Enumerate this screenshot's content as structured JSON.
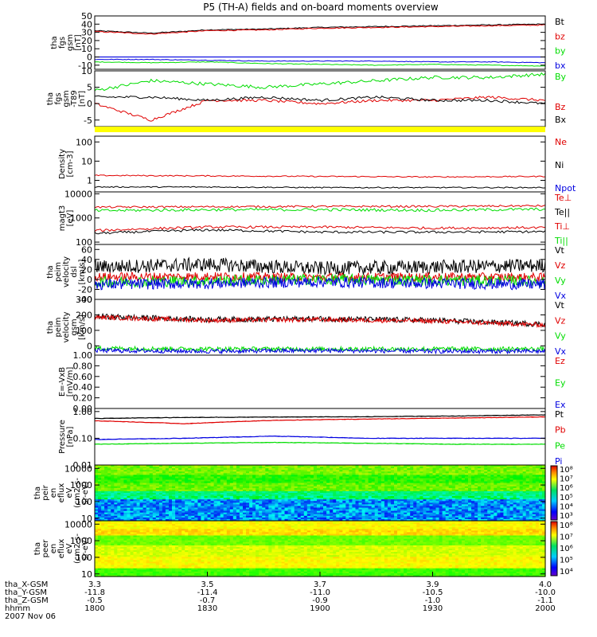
{
  "title": "P5 (TH-A) fields and on-board moments overview",
  "colors": {
    "black": "#000000",
    "red": "#e00000",
    "green": "#00dd00",
    "blue": "#0000e0",
    "yellow": "#ffff00"
  },
  "panels": [
    {
      "ylabel": [
        "tha",
        "fgs",
        "gsm",
        "[nT]"
      ],
      "ylim": [
        -15,
        50
      ],
      "ticks": [
        {
          "v": 50,
          "t": "50"
        },
        {
          "v": 40,
          "t": "40"
        },
        {
          "v": 30,
          "t": "30"
        },
        {
          "v": 20,
          "t": "20"
        },
        {
          "v": 10,
          "t": "10"
        },
        {
          "v": 0,
          "t": "0"
        },
        {
          "v": -10,
          "t": "-10"
        }
      ],
      "legend": [
        {
          "label": "Bt",
          "color": "black"
        },
        {
          "label": "bz",
          "color": "red"
        },
        {
          "label": "by",
          "color": "green"
        },
        {
          "label": "bx",
          "color": "blue"
        }
      ],
      "zero_line": true
    },
    {
      "ylabel": [
        "tha",
        "fgs",
        "gsm",
        "-T89",
        "[nT]"
      ],
      "ylim": [
        -7,
        10
      ],
      "ticks": [
        {
          "v": 10,
          "t": "10"
        },
        {
          "v": 5,
          "t": "5"
        },
        {
          "v": 0,
          "t": "0"
        },
        {
          "v": -5,
          "t": "-5"
        }
      ],
      "legend": [
        {
          "label": "By",
          "color": "green"
        },
        {
          "label": "Bz",
          "color": "red"
        },
        {
          "label": "Bx",
          "color": "black"
        }
      ],
      "zero_line": false
    },
    {
      "ylabel": [
        "Density",
        "[cm-3]"
      ],
      "scale": "log",
      "ylim": [
        0.25,
        200
      ],
      "ticks": [
        {
          "v": 100,
          "t": "100"
        },
        {
          "v": 10,
          "t": "10"
        },
        {
          "v": 1,
          "t": "1"
        }
      ],
      "legend": [
        {
          "label": "Ne",
          "color": "red"
        },
        {
          "label": "Ni",
          "color": "black"
        },
        {
          "label": "Npot",
          "color": "blue"
        }
      ]
    },
    {
      "ylabel": [
        "magt3",
        "[eV]"
      ],
      "scale": "log",
      "ylim": [
        80,
        12000
      ],
      "ticks": [
        {
          "v": 10000,
          "t": "10000"
        },
        {
          "v": 1000,
          "t": "1000"
        },
        {
          "v": 100,
          "t": "100"
        }
      ],
      "legend": [
        {
          "label": "Te⊥",
          "color": "red"
        },
        {
          "label": "Te||",
          "color": "black"
        },
        {
          "label": "Ti⊥",
          "color": "red"
        },
        {
          "label": "Ti||",
          "color": "green"
        }
      ]
    },
    {
      "ylabel": [
        "tha",
        "peim",
        "velocity",
        "dsl",
        "[km/s]"
      ],
      "ylim": [
        -40,
        70
      ],
      "ticks": [
        {
          "v": 60,
          "t": "60"
        },
        {
          "v": 40,
          "t": "40"
        },
        {
          "v": 20,
          "t": "20"
        },
        {
          "v": 0,
          "t": "0"
        },
        {
          "v": -20,
          "t": "-20"
        },
        {
          "v": -40,
          "t": "-40"
        }
      ],
      "legend": [
        {
          "label": "Vt",
          "color": "black"
        },
        {
          "label": "Vz",
          "color": "red"
        },
        {
          "label": "Vy",
          "color": "green"
        },
        {
          "label": "Vx",
          "color": "blue"
        }
      ]
    },
    {
      "ylabel": [
        "tha",
        "peim",
        "velocity",
        "gsm",
        "[km/s]"
      ],
      "ylim": [
        -60,
        300
      ],
      "ticks": [
        {
          "v": 300,
          "t": "300"
        },
        {
          "v": 200,
          "t": "200"
        },
        {
          "v": 100,
          "t": "100"
        },
        {
          "v": 0,
          "t": "0"
        }
      ],
      "legend": [
        {
          "label": "Vt",
          "color": "black"
        },
        {
          "label": "Vz",
          "color": "red"
        },
        {
          "label": "Vy",
          "color": "green"
        },
        {
          "label": "Vx",
          "color": "blue"
        }
      ]
    },
    {
      "ylabel": [
        "E=-VxB",
        "[mV/m]"
      ],
      "ylim": [
        0,
        1
      ],
      "ticks": [
        {
          "v": 1.0,
          "t": "1.00"
        },
        {
          "v": 0.8,
          "t": "0.80"
        },
        {
          "v": 0.6,
          "t": "0.60"
        },
        {
          "v": 0.4,
          "t": "0.40"
        },
        {
          "v": 0.2,
          "t": "0.20"
        },
        {
          "v": 0.0,
          "t": "0.00"
        }
      ],
      "legend": [
        {
          "label": "Ez",
          "color": "red"
        },
        {
          "label": "Ey",
          "color": "green"
        },
        {
          "label": "Ex",
          "color": "blue"
        }
      ]
    },
    {
      "ylabel": [
        "Pressure",
        "[nPa]"
      ],
      "scale": "log",
      "ylim": [
        0.01,
        1.3
      ],
      "ticks": [
        {
          "v": 1.0,
          "t": "1.00"
        },
        {
          "v": 0.1,
          "t": "0.10"
        },
        {
          "v": 0.01,
          "t": "0.01"
        }
      ],
      "legend": [
        {
          "label": "Pt",
          "color": "black"
        },
        {
          "label": "Pb",
          "color": "red"
        },
        {
          "label": "Pe",
          "color": "green"
        },
        {
          "label": "Pi",
          "color": "blue"
        }
      ]
    },
    {
      "ylabel": [
        "tha",
        "peir",
        "en",
        "eflux",
        "eV",
        "(cm2-s-",
        "sr-eV)"
      ],
      "scale": "log",
      "ylim": [
        7,
        16000
      ],
      "ticks": [
        {
          "v": 10000,
          "t": "10000"
        },
        {
          "v": 1000,
          "t": "1000"
        },
        {
          "v": 100,
          "t": "100"
        },
        {
          "v": 10,
          "t": "10"
        }
      ],
      "colorbar": [
        "10⁸",
        "10⁷",
        "10⁶",
        "10⁵",
        "10⁴",
        "10³"
      ]
    },
    {
      "ylabel": [
        "tha",
        "peer",
        "en",
        "eflux",
        "eV",
        "(cm2-s-",
        "sr-eV)"
      ],
      "scale": "log",
      "ylim": [
        7,
        16000
      ],
      "ticks": [
        {
          "v": 10000,
          "t": "10000"
        },
        {
          "v": 1000,
          "t": "1000"
        },
        {
          "v": 100,
          "t": "100"
        },
        {
          "v": 10,
          "t": "10"
        }
      ],
      "colorbar": [
        "10⁸",
        "10⁷",
        "10⁶",
        "10⁵",
        "10⁴"
      ]
    }
  ],
  "chart_data": {
    "type": "line",
    "title": "P5 (TH-A) fields and on-board moments overview",
    "x_range_hhmm": [
      "1800",
      "2000"
    ],
    "x_ticks": [
      "1800",
      "1830",
      "1900",
      "1930",
      "2000"
    ],
    "panels": [
      {
        "id": "fgs_gsm",
        "x_hhmm": [
          1800,
          1815,
          1830,
          1845,
          1900,
          1915,
          1930,
          1945,
          2000
        ],
        "series": [
          {
            "name": "Bt",
            "values": [
              32,
              29,
              33,
              34,
              36,
              37,
              38,
              39,
              40
            ]
          },
          {
            "name": "bz",
            "values": [
              31,
              28,
              32,
              33,
              35,
              36,
              37,
              38,
              39
            ]
          },
          {
            "name": "by",
            "values": [
              -6,
              -7,
              -6,
              -8,
              -9,
              -10,
              -9,
              -10,
              -11
            ]
          },
          {
            "name": "bx",
            "values": [
              -3,
              -3,
              -4,
              -5,
              -5,
              -5,
              -6,
              -6,
              -7
            ]
          }
        ]
      },
      {
        "id": "fgs_gsm_minus_t89",
        "x_hhmm": [
          1800,
          1815,
          1830,
          1845,
          1900,
          1915,
          1930,
          1945,
          2000
        ],
        "series": [
          {
            "name": "By",
            "values": [
              4,
              7,
              6,
              5,
              6,
              7,
              8,
              8,
              9
            ]
          },
          {
            "name": "Bz",
            "values": [
              0,
              -5,
              1,
              1,
              0,
              1,
              1,
              2,
              1
            ]
          },
          {
            "name": "Bx",
            "values": [
              2,
              2,
              1,
              2,
              1,
              2,
              1,
              1,
              0
            ]
          }
        ]
      },
      {
        "id": "density",
        "x_hhmm": [
          1800,
          1830,
          1900,
          1930,
          2000
        ],
        "series": [
          {
            "name": "Ne",
            "values": [
              1.8,
              1.7,
              1.6,
              1.5,
              1.6
            ]
          },
          {
            "name": "Ni",
            "values": [
              0.45,
              0.45,
              0.42,
              0.42,
              0.42
            ]
          },
          {
            "name": "Npot",
            "values": []
          }
        ]
      },
      {
        "id": "magt3",
        "x_hhmm": [
          1800,
          1830,
          1900,
          1930,
          2000
        ],
        "series": [
          {
            "name": "Te⊥",
            "values": [
              2800,
              2900,
              3000,
              3000,
              3200
            ]
          },
          {
            "name": "Te||",
            "values": [
              230,
              320,
              260,
              260,
              270
            ]
          },
          {
            "name": "Ti⊥",
            "values": [
              300,
              420,
              420,
              380,
              400
            ]
          },
          {
            "name": "Ti||",
            "values": [
              2000,
              2200,
              2200,
              2100,
              2300
            ]
          }
        ]
      },
      {
        "id": "velocity_dsl",
        "x_hhmm": [
          1800,
          1830,
          1900,
          1930,
          2000
        ],
        "series": [
          {
            "name": "Vt",
            "values": [
              25,
              30,
              22,
              25,
              28
            ]
          },
          {
            "name": "Vz",
            "values": [
              5,
              6,
              4,
              5,
              4
            ]
          },
          {
            "name": "Vy",
            "values": [
              -5,
              -3,
              0,
              -2,
              -4
            ]
          },
          {
            "name": "Vx",
            "values": [
              -10,
              -8,
              -5,
              -8,
              -10
            ]
          }
        ]
      },
      {
        "id": "velocity_gsm",
        "x_hhmm": [
          1800,
          1830,
          1900,
          1930,
          2000
        ],
        "series": [
          {
            "name": "Vt",
            "values": [
              190,
              170,
              175,
              165,
              140
            ]
          },
          {
            "name": "Vz",
            "values": [
              185,
              165,
              170,
              160,
              135
            ]
          },
          {
            "name": "Vy",
            "values": [
              -15,
              -20,
              -20,
              -20,
              -20
            ]
          },
          {
            "name": "Vx",
            "values": [
              -30,
              -35,
              -30,
              -35,
              -35
            ]
          }
        ]
      },
      {
        "id": "e_vxb",
        "series": [
          {
            "name": "Ez",
            "values": []
          },
          {
            "name": "Ey",
            "values": []
          },
          {
            "name": "Ex",
            "values": []
          }
        ]
      },
      {
        "id": "pressure",
        "x_hhmm": [
          1800,
          1815,
          1830,
          1900,
          1930,
          2000
        ],
        "series": [
          {
            "name": "Pt",
            "values": [
              0.55,
              0.6,
              0.62,
              0.64,
              0.68,
              0.75
            ]
          },
          {
            "name": "Pb",
            "values": [
              0.45,
              0.35,
              0.47,
              0.52,
              0.57,
              0.63
            ]
          },
          {
            "name": "Pe",
            "values": [
              0.06,
              0.065,
              0.07,
              0.065,
              0.06,
              0.06
            ]
          },
          {
            "name": "Pi",
            "values": [
              0.09,
              0.1,
              0.12,
              0.1,
              0.1,
              0.1
            ]
          }
        ]
      }
    ]
  },
  "orbit": {
    "labels": [
      "tha_X-GSM",
      "tha_Y-GSM",
      "tha_Z-GSM",
      "hhmm",
      "2007 Nov 06"
    ],
    "columns": [
      [
        "3.3",
        "-11.8",
        "-0.5",
        "1800"
      ],
      [
        "3.5",
        "-11.4",
        "-0.7",
        "1830"
      ],
      [
        "3.7",
        "-11.0",
        "-0.9",
        "1900"
      ],
      [
        "3.9",
        "-10.5",
        "-1.0",
        "1930"
      ],
      [
        "4.0",
        "-10.0",
        "-1.1",
        "2000"
      ]
    ]
  }
}
